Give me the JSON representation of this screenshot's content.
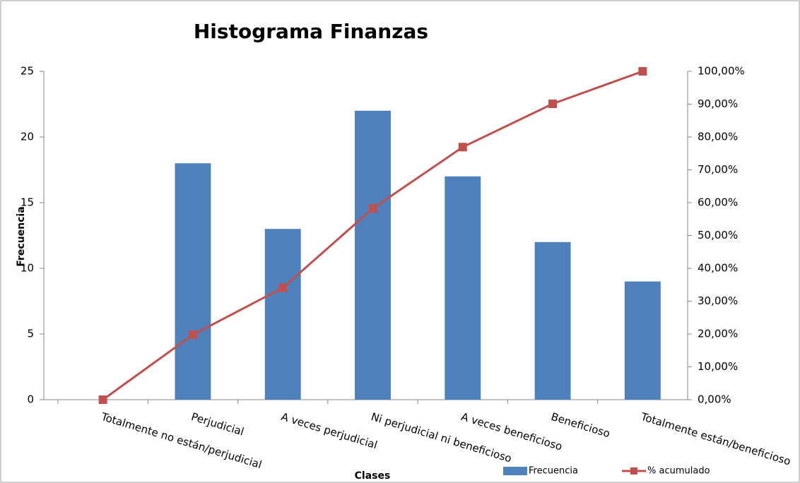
{
  "chart_data": {
    "type": "bar",
    "title": "Histograma  Finanzas",
    "x_label": "Clases",
    "y_label": "Frecuencia",
    "categories": [
      "Totalmente no están/perjudicial",
      "Perjudicial",
      "A veces perjudicial",
      "Ni perjudicial ni beneficioso",
      "A veces beneficioso",
      "Beneficioso",
      "Totalmente están/beneficioso"
    ],
    "series": [
      {
        "name": "Frecuencia",
        "type": "bar",
        "color": "#4f81bd",
        "values": [
          0,
          18,
          13,
          22,
          17,
          12,
          9
        ]
      },
      {
        "name": "% acumulado",
        "type": "line",
        "axis": "y2",
        "color": "#c0504d",
        "values": [
          0,
          19.78,
          34.07,
          58.24,
          76.92,
          90.11,
          100
        ]
      }
    ],
    "ylim": [
      0,
      25
    ],
    "yticks": [
      0,
      5,
      10,
      15,
      20,
      25
    ],
    "y2lim": [
      0,
      100
    ],
    "y2ticks": [
      {
        "value": 0,
        "label": "0,00%"
      },
      {
        "value": 10,
        "label": "10,00%"
      },
      {
        "value": 20,
        "label": "20,00%"
      },
      {
        "value": 30,
        "label": "30,00%"
      },
      {
        "value": 40,
        "label": "40,00%"
      },
      {
        "value": 50,
        "label": "50,00%"
      },
      {
        "value": 60,
        "label": "60,00%"
      },
      {
        "value": 70,
        "label": "70,00%"
      },
      {
        "value": 80,
        "label": "80,00%"
      },
      {
        "value": 90,
        "label": "90,00%"
      },
      {
        "value": 100,
        "label": "100,00%"
      }
    ],
    "grid": false,
    "legend": "bottom"
  }
}
